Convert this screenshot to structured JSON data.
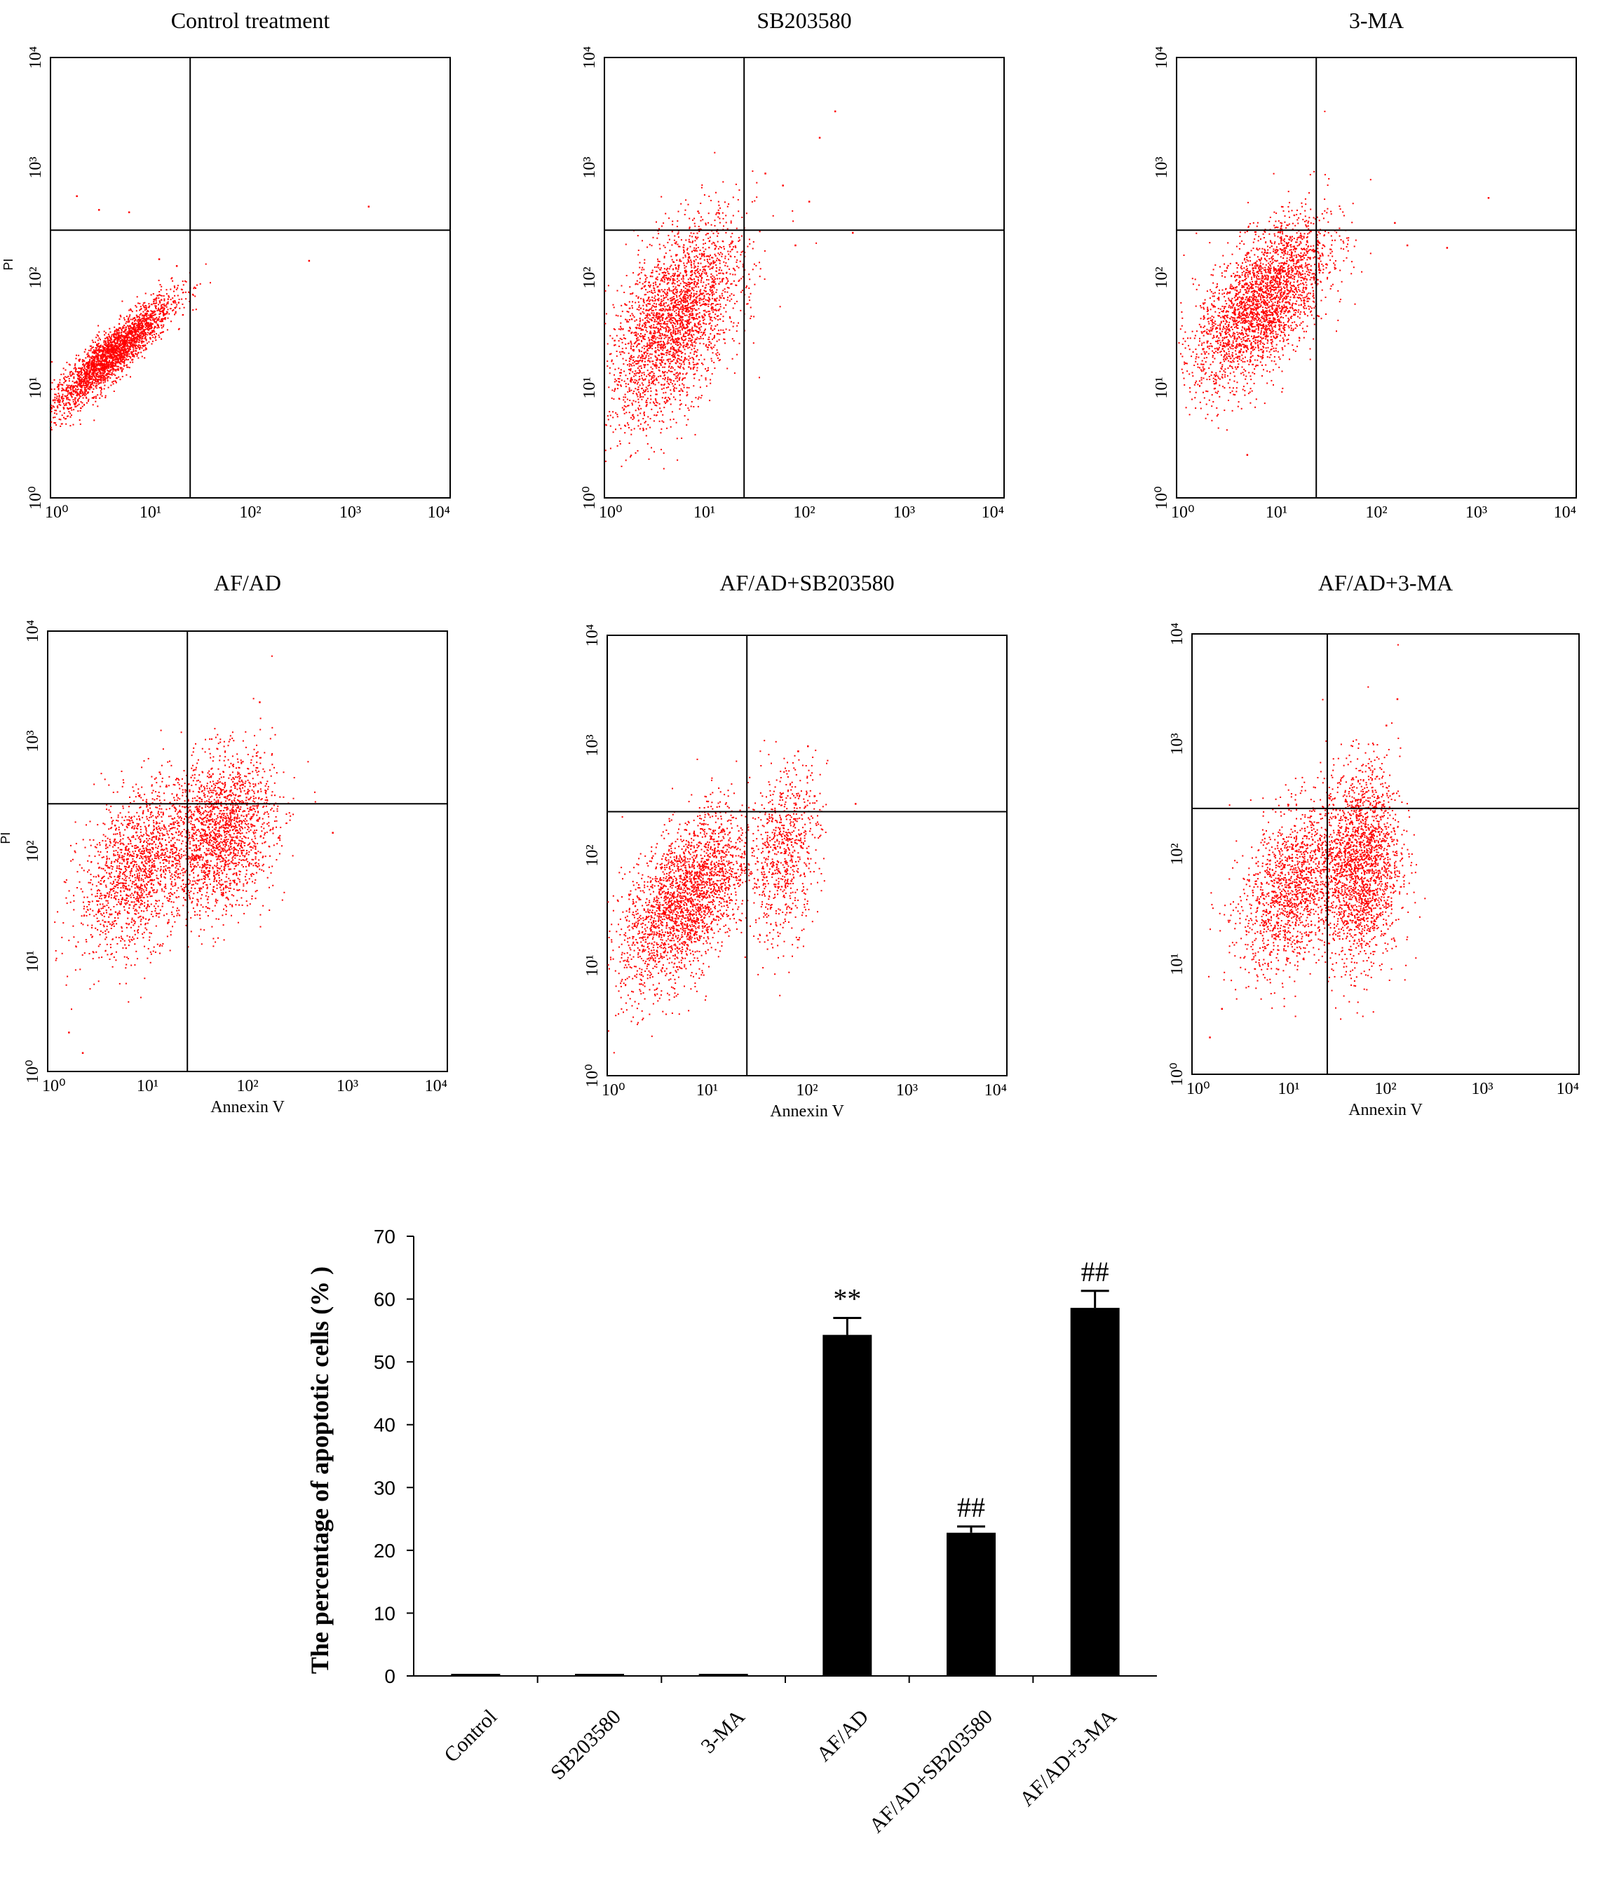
{
  "chart_data": [
    {
      "type": "scatter",
      "subtype": "flow-cytometry-panels",
      "scale": "log",
      "axis_ticks": [
        "10⁰",
        "10¹",
        "10²",
        "10³",
        "10⁴"
      ],
      "y_axis_label": "PI",
      "x_axis_label": "Annexin V",
      "colors": {
        "points": "#ff0000",
        "gate": "#000000",
        "gate_highlight": "#22bbcc"
      },
      "panels": [
        {
          "title": "Control treatment",
          "gate_x": 25,
          "gate_y": 270,
          "show_ylabel": true,
          "show_xlabel": false,
          "clusters": [
            {
              "cx": 4,
              "cy": 20,
              "sx": 0.3,
              "sy": 0.26,
              "rho": 0.9,
              "n": 2600
            }
          ],
          "outliers": [
            [
              1.8,
              560
            ],
            [
              3,
              420
            ],
            [
              6,
              400
            ],
            [
              1500,
              450
            ],
            [
              380,
              145
            ],
            [
              12,
              150
            ],
            [
              18,
              130
            ]
          ]
        },
        {
          "title": "SB203580",
          "gate_x": 25,
          "gate_y": 270,
          "show_ylabel": false,
          "show_xlabel": false,
          "clusters": [
            {
              "cx": 5,
              "cy": 40,
              "sx": 0.33,
              "sy": 0.45,
              "rho": 0.55,
              "n": 2800
            }
          ],
          "outliers": [
            [
              200,
              3300
            ],
            [
              140,
              1900
            ],
            [
              40,
              900
            ],
            [
              60,
              700
            ],
            [
              110,
              500
            ],
            [
              80,
              200
            ],
            [
              300,
              260
            ]
          ]
        },
        {
          "title": "3-MA",
          "gate_x": 25,
          "gate_y": 270,
          "show_ylabel": false,
          "show_xlabel": false,
          "clusters": [
            {
              "cx": 7,
              "cy": 60,
              "sx": 0.33,
              "sy": 0.38,
              "rho": 0.6,
              "n": 2800
            }
          ],
          "outliers": [
            [
              1300,
              540
            ],
            [
              500,
              190
            ],
            [
              150,
              320
            ],
            [
              200,
              200
            ],
            [
              5,
              2.5
            ]
          ]
        },
        {
          "title": "AF/AD",
          "gate_x": 25,
          "gate_y": 270,
          "show_ylabel": true,
          "show_xlabel": true,
          "clusters": [
            {
              "cx": 8,
              "cy": 70,
              "sx": 0.3,
              "sy": 0.38,
              "rho": 0.4,
              "n": 1600
            },
            {
              "cx": 55,
              "cy": 150,
              "sx": 0.26,
              "sy": 0.35,
              "rho": 0.2,
              "n": 1800
            }
          ],
          "outliers": [
            [
              1.6,
              2.3
            ],
            [
              2.2,
              1.5
            ],
            [
              700,
              150
            ],
            [
              130,
              2300
            ]
          ]
        },
        {
          "title": "AF/AD+SB203580",
          "gate_x": 25,
          "gate_y": 250,
          "show_ylabel": false,
          "show_xlabel": true,
          "clusters": [
            {
              "cx": 6,
              "cy": 40,
              "sx": 0.32,
              "sy": 0.4,
              "rho": 0.55,
              "n": 2500
            },
            {
              "cx": 60,
              "cy": 110,
              "sx": 0.17,
              "sy": 0.4,
              "rho": 0.3,
              "n": 700
            }
          ],
          "outliers": [
            [
              80,
              900
            ],
            [
              100,
              1000
            ],
            [
              300,
              300
            ]
          ]
        },
        {
          "title": "AF/AD+3-MA",
          "gate_x": 25,
          "gate_y": 260,
          "show_ylabel": false,
          "show_xlabel": true,
          "clusters": [
            {
              "cx": 11,
              "cy": 50,
              "sx": 0.28,
              "sy": 0.38,
              "rho": 0.4,
              "n": 1500
            },
            {
              "cx": 55,
              "cy": 80,
              "sx": 0.2,
              "sy": 0.45,
              "rho": 0.1,
              "n": 2000
            }
          ],
          "outliers": [
            [
              1.5,
              2.2
            ],
            [
              2,
              4
            ],
            [
              130,
              2600
            ],
            [
              100,
              1500
            ]
          ]
        }
      ]
    },
    {
      "type": "bar",
      "categories": [
        "Control",
        "SB203580",
        "3-MA",
        "AF/AD",
        "AF/AD+SB203580",
        "AF/AD+3-MA"
      ],
      "values": [
        0.3,
        0.3,
        0.3,
        54.3,
        22.8,
        58.6
      ],
      "errors": [
        0,
        0,
        0,
        2.7,
        1.0,
        2.7
      ],
      "annotations": [
        "",
        "",
        "",
        "**",
        "##",
        "##"
      ],
      "ylabel": "The percentage of apoptotic cells (% )",
      "xlabel": "",
      "ylim": [
        0,
        70
      ],
      "yticks": [
        0,
        10,
        20,
        30,
        40,
        50,
        60,
        70
      ],
      "bar_color": "#000000"
    }
  ]
}
